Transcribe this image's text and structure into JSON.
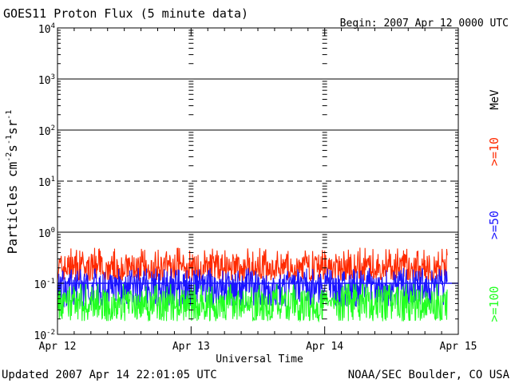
{
  "header": {
    "title": "GOES11 Proton Flux (5 minute data)",
    "begin": "Begin: 2007 Apr 12 0000 UTC"
  },
  "footer": {
    "updated": "Updated 2007 Apr 14 22:01:05 UTC",
    "credit": "NOAA/SEC Boulder, CO USA"
  },
  "colors": {
    "ge10": "#ff2a00",
    "ge50": "#1a14ff",
    "ge100": "#22ff22",
    "axis": "#000000"
  },
  "chart_data": {
    "type": "line",
    "title": "GOES11 Proton Flux (5 minute data)",
    "xlabel": "Universal Time",
    "ylabel_parts": {
      "base": "Particles cm",
      "exp1": "-2",
      "s": "s",
      "exp2": "-1",
      "sr": "sr",
      "exp3": "-1"
    },
    "y_scale": "log",
    "ylim": [
      0.01,
      10000
    ],
    "y_ticks": [
      {
        "base": "10",
        "exp": "-2",
        "value": 0.01
      },
      {
        "base": "10",
        "exp": "-1",
        "value": 0.1
      },
      {
        "base": "10",
        "exp": "0",
        "value": 1
      },
      {
        "base": "10",
        "exp": "1",
        "value": 10
      },
      {
        "base": "10",
        "exp": "2",
        "value": 100
      },
      {
        "base": "10",
        "exp": "3",
        "value": 1000
      },
      {
        "base": "10",
        "exp": "4",
        "value": 10000
      }
    ],
    "xlim": [
      "2007-04-12 00:00",
      "2007-04-15 00:00"
    ],
    "x_ticks": [
      "Apr 12",
      "Apr 13",
      "Apr 14",
      "Apr 15"
    ],
    "data_end": "2007-04-14 22:00",
    "thresholds": [
      {
        "value": 0.1,
        "style": "solid",
        "color": "#1a14ff"
      },
      {
        "value": 1,
        "style": "solid",
        "color": "#000000"
      },
      {
        "value": 10,
        "style": "dashed",
        "color": "#000000"
      },
      {
        "value": 100,
        "style": "solid",
        "color": "#000000"
      },
      {
        "value": 1000,
        "style": "solid",
        "color": "#000000"
      }
    ],
    "units_label": "MeV",
    "series": [
      {
        "name": ">=10",
        "color": "#ff2a00",
        "min": 0.11,
        "max": 0.5,
        "typical": 0.2
      },
      {
        "name": ">=50",
        "color": "#1a14ff",
        "min": 0.035,
        "max": 0.2,
        "typical": 0.09
      },
      {
        "name": ">=100",
        "color": "#22ff22",
        "min": 0.018,
        "max": 0.1,
        "typical": 0.04
      }
    ]
  }
}
